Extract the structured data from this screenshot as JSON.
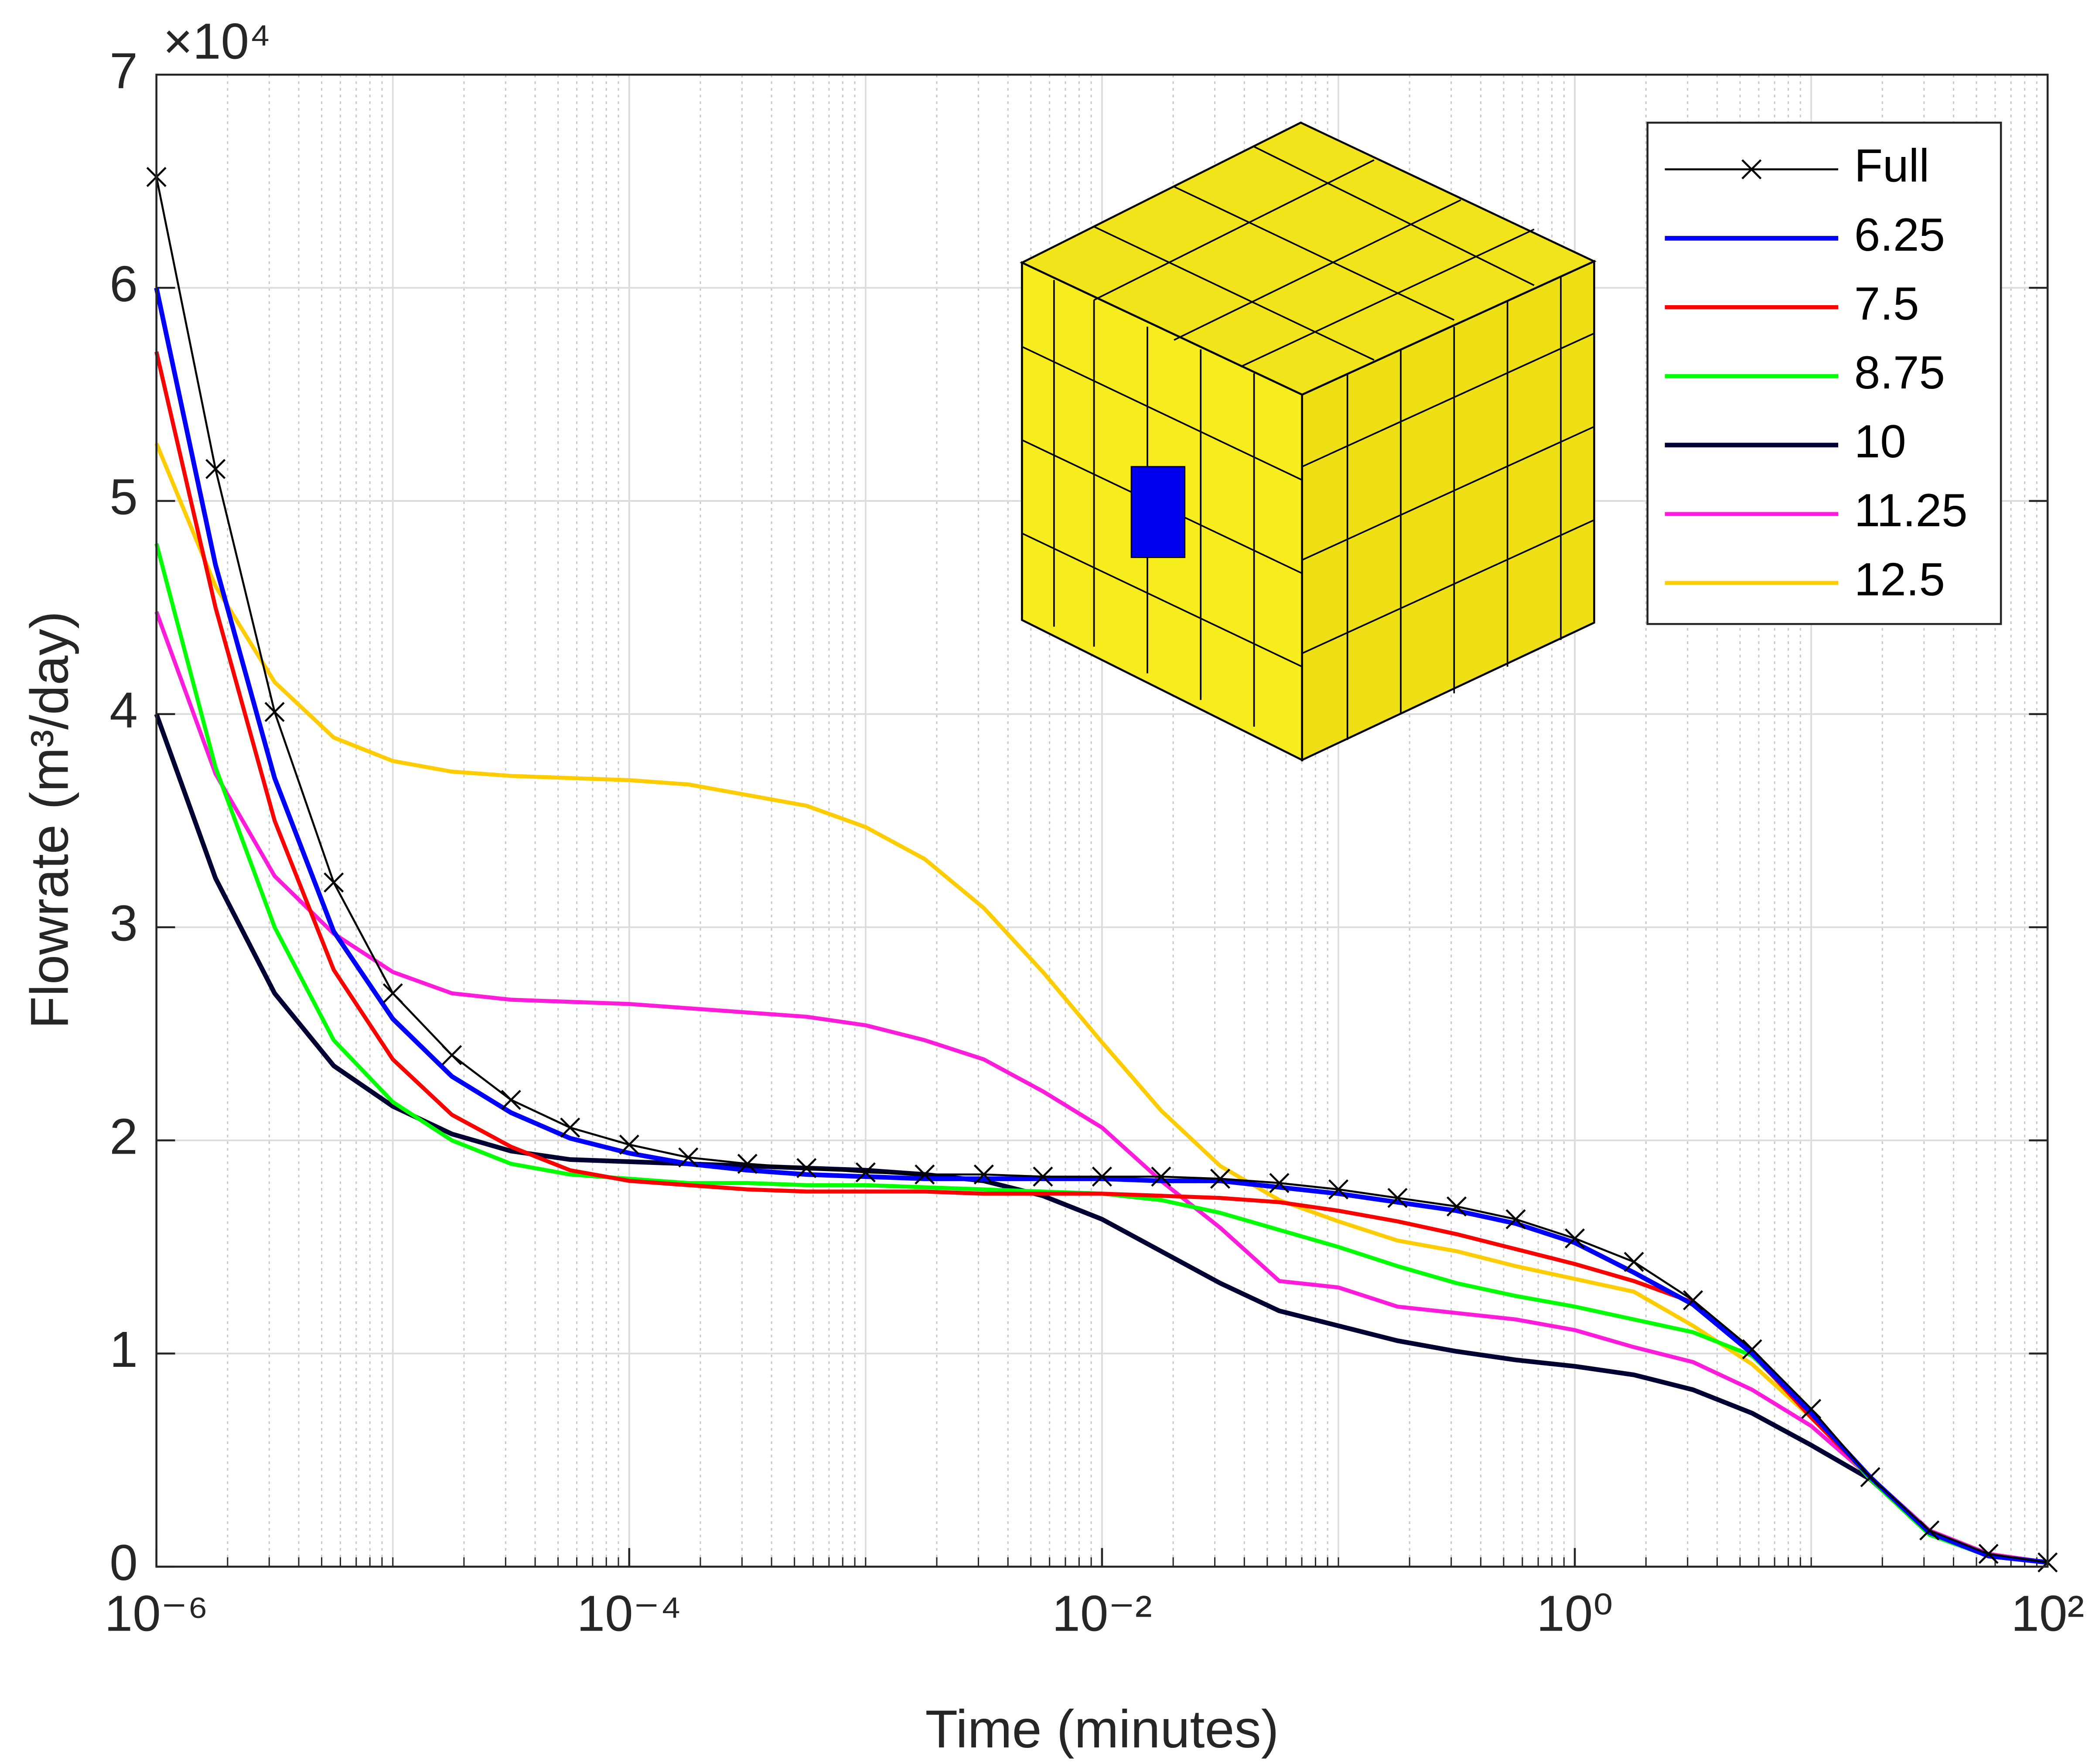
{
  "chart_data": {
    "type": "line",
    "xlabel": "Time (minutes)",
    "ylabel": "Flowrate (m³/day)",
    "y_multiplier": "×10⁴",
    "xscale": "log",
    "grid": true,
    "minor_grid": true,
    "legend": "upper right",
    "xlim": [
      1e-06,
      100
    ],
    "ylim": [
      0,
      70000
    ],
    "xticks": [
      {
        "value": 1e-06,
        "label": "10⁻⁶"
      },
      {
        "value": 0.0001,
        "label": "10⁻⁴"
      },
      {
        "value": 0.01,
        "label": "10⁻²"
      },
      {
        "value": 1,
        "label": "10⁰"
      },
      {
        "value": 100,
        "label": "10²"
      }
    ],
    "yticks": [
      {
        "value": 0,
        "label": "0"
      },
      {
        "value": 10000,
        "label": "1"
      },
      {
        "value": 20000,
        "label": "2"
      },
      {
        "value": 30000,
        "label": "3"
      },
      {
        "value": 40000,
        "label": "4"
      },
      {
        "value": 50000,
        "label": "5"
      },
      {
        "value": 60000,
        "label": "6"
      },
      {
        "value": 70000,
        "label": "7"
      }
    ],
    "x": [
      1e-06,
      1.778e-06,
      3.162e-06,
      5.623e-06,
      1e-05,
      1.778e-05,
      3.162e-05,
      5.623e-05,
      0.0001,
      0.0001778,
      0.0003162,
      0.0005623,
      0.001,
      0.001778,
      0.003162,
      0.005623,
      0.01,
      0.01778,
      0.03162,
      0.05623,
      0.1,
      0.1778,
      0.3162,
      0.5623,
      1,
      1.778,
      3.162,
      5.623,
      10,
      17.78,
      31.62,
      56.23,
      100
    ],
    "series": [
      {
        "name": "Full",
        "color": "#000000",
        "width": 1.5,
        "marker": "x",
        "values": [
          65200,
          51500,
          40100,
          32100,
          26900,
          24000,
          21900,
          20600,
          19800,
          19200,
          18900,
          18700,
          18500,
          18400,
          18400,
          18300,
          18300,
          18300,
          18200,
          18000,
          17700,
          17300,
          16900,
          16300,
          15400,
          14300,
          12500,
          10200,
          7400,
          4200,
          1700,
          600,
          200
        ]
      },
      {
        "name": "6.25",
        "color": "#0000ff",
        "width": 3.5,
        "values": [
          60000,
          47000,
          37000,
          29800,
          25700,
          23000,
          21300,
          20100,
          19400,
          18900,
          18600,
          18400,
          18300,
          18200,
          18200,
          18200,
          18200,
          18100,
          18100,
          17800,
          17500,
          17100,
          16700,
          16100,
          15200,
          13800,
          12300,
          10000,
          7200,
          4200,
          1600,
          500,
          200
        ]
      },
      {
        "name": "7.5",
        "color": "#ff0000",
        "width": 3,
        "values": [
          57000,
          45000,
          35000,
          28000,
          23800,
          21200,
          19700,
          18600,
          18100,
          17900,
          17700,
          17600,
          17600,
          17600,
          17500,
          17500,
          17500,
          17400,
          17300,
          17100,
          16700,
          16200,
          15600,
          14900,
          14200,
          13400,
          12400,
          10000,
          7000,
          4200,
          1600,
          500,
          200
        ]
      },
      {
        "name": "8.75",
        "color": "#00ff00",
        "width": 3,
        "values": [
          48000,
          37500,
          30000,
          24700,
          21800,
          20000,
          18900,
          18400,
          18200,
          18000,
          18000,
          17900,
          17900,
          17800,
          17700,
          17600,
          17500,
          17200,
          16600,
          15800,
          15000,
          14100,
          13300,
          12700,
          12200,
          11600,
          11000,
          9900,
          7200,
          4100,
          1500,
          500,
          200
        ]
      },
      {
        "name": "10",
        "color": "#000033",
        "width": 3.5,
        "values": [
          40000,
          32300,
          26900,
          23500,
          21600,
          20300,
          19500,
          19100,
          19000,
          18900,
          18800,
          18700,
          18600,
          18400,
          18100,
          17400,
          16300,
          14800,
          13300,
          12000,
          11300,
          10600,
          10100,
          9700,
          9400,
          9000,
          8300,
          7200,
          5700,
          4100,
          1600,
          500,
          200
        ]
      },
      {
        "name": "11.25",
        "color": "#ff1ddb",
        "width": 3,
        "values": [
          44800,
          37200,
          32400,
          29700,
          27900,
          26900,
          26600,
          26500,
          26400,
          26200,
          26000,
          25800,
          25400,
          24700,
          23800,
          22300,
          20600,
          18100,
          15900,
          13400,
          13100,
          12200,
          11900,
          11600,
          11100,
          10300,
          9600,
          8300,
          6600,
          4200,
          1700,
          600,
          200
        ]
      },
      {
        "name": "12.5",
        "color": "#ffcc00",
        "width": 3,
        "values": [
          52700,
          46000,
          41500,
          38900,
          37800,
          37300,
          37100,
          37000,
          36900,
          36700,
          36200,
          35700,
          34700,
          33200,
          30900,
          27900,
          24600,
          21400,
          18800,
          17200,
          16200,
          15300,
          14800,
          14100,
          13500,
          12900,
          11300,
          9500,
          7000,
          4200,
          1700,
          500,
          200
        ]
      }
    ]
  }
}
